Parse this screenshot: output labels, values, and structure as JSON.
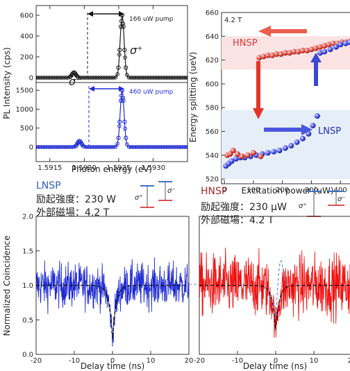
{
  "panel_a": {
    "upper_pump": "166 uW pump",
    "lower_pump": "460 uW pump",
    "sigma_plus": "σ⁺",
    "sigma_minus": "σ⁻"
  },
  "panel_b": {
    "field": "4.2 T",
    "hnsp": "HNSP",
    "lnsp": "LNSP"
  },
  "panel_c": {
    "title": "LNSP",
    "line1": "励起強度：230 W",
    "line2": "外部磁場：4.2 T",
    "sp": "σ⁺",
    "sm": "σ⁻"
  },
  "panel_d": {
    "title": "HNSP",
    "line1": "励起強度：230 μW",
    "line2": "外部磁場：4.2 T",
    "sp": "σ⁺",
    "sm": "σ⁻"
  },
  "colors": {
    "black": "#1a1a1a",
    "blue": "#1f2bd1",
    "red": "#ee1111",
    "hnsp_text": "#d93a3a",
    "lnsp_text": "#1f2fb8",
    "band_red": "#fbe3e3",
    "band_blue": "#e6eef8"
  },
  "chart_data": [
    {
      "id": "pl_spectra",
      "type": "line",
      "xlabel": "Photon energy (eV)",
      "ylabel": "PL Intensity (cps)",
      "xlim": [
        1.5913,
        1.5935
      ],
      "x_ticks": [
        "1.5915",
        "1.5920",
        "1.5925",
        "1.5930"
      ],
      "upper_yticks": [
        "0",
        "200",
        "400",
        "600"
      ],
      "lower_yticks": [
        "0",
        "500",
        "1000",
        "1500"
      ],
      "series": [
        {
          "name": "166 uW pump",
          "peaks": [
            {
              "x": 1.59185,
              "y": 50,
              "w": 4e-05
            },
            {
              "x": 1.59255,
              "y": 600,
              "w": 4e-05
            }
          ]
        },
        {
          "name": "460 uW pump",
          "peaks": [
            {
              "x": 1.59193,
              "y": 160,
              "w": 4e-05
            },
            {
              "x": 1.59255,
              "y": 1500,
              "w": 4e-05
            }
          ]
        }
      ]
    },
    {
      "id": "energy_splitting",
      "type": "scatter",
      "xlabel": "Excitation power (uW)",
      "ylabel": "Energy splitting (ueV)",
      "xlim": [
        -10,
        445
      ],
      "ylim": [
        516,
        660
      ],
      "x_ticks": [
        "0",
        "100",
        "200",
        "300",
        "400"
      ],
      "y_ticks": [
        "520",
        "540",
        "560",
        "580",
        "600",
        "620",
        "640",
        "660"
      ],
      "series": [
        {
          "name": "HNSP",
          "x": [
            120,
            135,
            150,
            165,
            180,
            195,
            210,
            225,
            240,
            255,
            270,
            285,
            300,
            315,
            330,
            345,
            360,
            375,
            390,
            405,
            420,
            435
          ],
          "y": [
            622,
            623,
            624,
            624,
            625,
            625,
            626,
            626,
            627,
            627,
            628,
            628,
            629,
            630,
            631,
            632,
            633,
            634,
            634,
            635,
            635,
            636
          ]
        },
        {
          "name": "LNSP",
          "x": [
            5,
            15,
            25,
            40,
            55,
            70,
            90,
            110,
            130,
            150,
            170,
            190,
            210,
            230,
            250,
            270,
            290,
            305,
            320
          ],
          "y": [
            531,
            533,
            535,
            537,
            538,
            538,
            539,
            540,
            541,
            542,
            543,
            544,
            546,
            548,
            551,
            554,
            558,
            565,
            573
          ]
        },
        {
          "name": "LNSP-red",
          "x": [
            10,
            20,
            30,
            45,
            60,
            80,
            100,
            125
          ],
          "y": [
            540,
            541,
            544,
            541,
            539,
            540,
            542,
            539
          ]
        }
      ]
    },
    {
      "id": "coincidence_lnsp",
      "type": "line",
      "xlabel": "Delay time (ns)",
      "ylabel": "Normalized Coincidence",
      "xlim": [
        -20,
        20
      ],
      "ylim": [
        0.0,
        2.0
      ],
      "x_ticks": [
        "-20",
        "-10",
        "0",
        "10",
        "20"
      ],
      "y_ticks": [
        "0.0",
        "0.5",
        "1.0",
        "1.5",
        "2.0"
      ],
      "series": [
        {
          "name": "LNSP",
          "dip_center": 0,
          "dip_min": 0.22,
          "noise": 0.32
        }
      ]
    },
    {
      "id": "coincidence_hnsp",
      "type": "line",
      "xlabel": "Delay time (ns)",
      "xlim": [
        -20,
        20
      ],
      "ylim": [
        0.0,
        2.0
      ],
      "x_ticks": [
        "-20",
        "-10",
        "0",
        "10",
        "20"
      ],
      "series": [
        {
          "name": "HNSP",
          "dip_center": 0,
          "dip_min": 0.35,
          "noise": 0.45
        }
      ]
    }
  ]
}
